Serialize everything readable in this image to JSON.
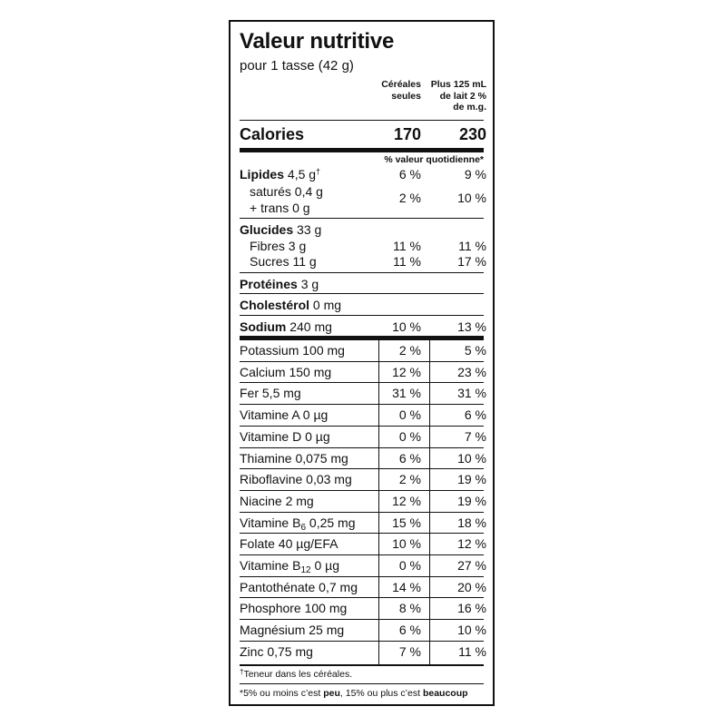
{
  "title": "Valeur nutritive",
  "serving": "pour 1 tasse (42 g)",
  "columns": {
    "cereal": [
      "Céréales",
      "seules"
    ],
    "milk": [
      "Plus 125 mL",
      "de lait 2 %",
      "de m.g."
    ]
  },
  "calories": {
    "label": "Calories",
    "cereal": "170",
    "milk": "230"
  },
  "dv_header": "% valeur quotidienne*",
  "top_nutrients": {
    "lipides": {
      "label": "Lipides",
      "amount": "4,5 g",
      "mark": "†",
      "cereal": "6 %",
      "milk": "9 %"
    },
    "satures": {
      "line1": "saturés 0,4 g",
      "line2": "+ trans 0 g",
      "cereal": "2 %",
      "milk": "10 %"
    },
    "glucides": {
      "label": "Glucides",
      "amount": "33 g"
    },
    "fibres": {
      "label": "Fibres 3 g",
      "cereal": "11 %",
      "milk": "11 %"
    },
    "sucres": {
      "label": "Sucres 11 g",
      "cereal": "11 %",
      "milk": "17 %"
    },
    "proteines": {
      "label": "Protéines",
      "amount": "3 g"
    },
    "cholesterol": {
      "label": "Cholestérol",
      "amount": "0 mg"
    },
    "sodium": {
      "label": "Sodium",
      "amount": "240 mg",
      "cereal": "10 %",
      "milk": "13 %"
    }
  },
  "vitamins": [
    {
      "pre": "Potassium 100 mg",
      "cereal": "2 %",
      "milk": "5 %"
    },
    {
      "pre": "Calcium 150 mg",
      "cereal": "12 %",
      "milk": "23 %"
    },
    {
      "pre": "Fer 5,5 mg",
      "cereal": "31 %",
      "milk": "31 %"
    },
    {
      "pre": "Vitamine A 0 µg",
      "cereal": "0 %",
      "milk": "6 %"
    },
    {
      "pre": "Vitamine D 0 µg",
      "cereal": "0 %",
      "milk": "7 %"
    },
    {
      "pre": "Thiamine 0,075 mg",
      "cereal": "6 %",
      "milk": "10 %"
    },
    {
      "pre": "Riboflavine 0,03 mg",
      "cereal": "2 %",
      "milk": "19 %"
    },
    {
      "pre": "Niacine 2 mg",
      "cereal": "12 %",
      "milk": "19 %"
    },
    {
      "pre": "Vitamine B",
      "sub": "6",
      "post": " 0,25 mg",
      "cereal": "15 %",
      "milk": "18 %"
    },
    {
      "pre": "Folate 40 µg/EFA",
      "cereal": "10 %",
      "milk": "12 %"
    },
    {
      "pre": "Vitamine B",
      "sub": "12",
      "post": " 0 µg",
      "cereal": "0 %",
      "milk": "27 %"
    },
    {
      "pre": "Pantothénate 0,7 mg",
      "cereal": "14 %",
      "milk": "20 %"
    },
    {
      "pre": "Phosphore 100 mg",
      "cereal": "8 %",
      "milk": "16 %"
    },
    {
      "pre": "Magnésium 25 mg",
      "cereal": "6 %",
      "milk": "10 %"
    },
    {
      "pre": "Zinc 0,75 mg",
      "cereal": "7 %",
      "milk": "11 %"
    }
  ],
  "footnotes": {
    "dagger_mark": "†",
    "dagger_text": "Teneur dans les céréales.",
    "dv_a": "*5% ou moins c’est ",
    "dv_peu": "peu",
    "dv_b": ", 15% ou plus c’est ",
    "dv_beaucoup": "beaucoup"
  }
}
